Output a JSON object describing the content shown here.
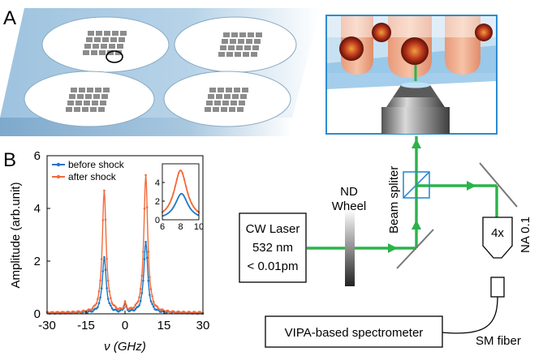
{
  "panels": {
    "a_label": "A",
    "b_label": "B"
  },
  "optics": {
    "nd_wheel": [
      "ND",
      "Wheel"
    ],
    "beam_splitter": "Beam spliter",
    "laser": [
      "CW Laser",
      "532 nm",
      "< 0.01pm"
    ],
    "objective": "4x",
    "aperture": "NA 0.1",
    "spectrometer": "VIPA-based spectrometer",
    "fiber": "SM fiber",
    "beam_color": "#2bb34a"
  },
  "chart_data": {
    "type": "line",
    "ylabel": "Amplitude (arb.unit)",
    "xlabel": "ν (GHz)",
    "xlim": [
      -30,
      30
    ],
    "ylim": [
      0,
      6
    ],
    "xticks": [
      "-30",
      "-15",
      "0",
      "15",
      "30"
    ],
    "yticks": [
      "0",
      "2",
      "4",
      "6"
    ],
    "legend_position": "top-left",
    "series": [
      {
        "name": "before shock",
        "color": "#1f77c4",
        "peaks": [
          {
            "center": -8.0,
            "height": 2.1
          },
          {
            "center": 8.0,
            "height": 2.7
          },
          {
            "center": 0.0,
            "height": 0.3
          }
        ]
      },
      {
        "name": "after shock",
        "color": "#f26b3a",
        "peaks": [
          {
            "center": -8.0,
            "height": 4.6
          },
          {
            "center": 8.0,
            "height": 5.2
          },
          {
            "center": 0.0,
            "height": 0.3
          }
        ]
      }
    ],
    "inset": {
      "xlim": [
        6,
        10
      ],
      "ylim": [
        0,
        6
      ],
      "xticks": [
        "6",
        "8",
        "10"
      ],
      "yticks": [
        "0",
        "2",
        "4"
      ],
      "series": [
        {
          "name": "before shock",
          "center": 8.1,
          "height": 2.8
        },
        {
          "name": "after shock",
          "center": 8.0,
          "height": 5.3
        }
      ]
    }
  }
}
